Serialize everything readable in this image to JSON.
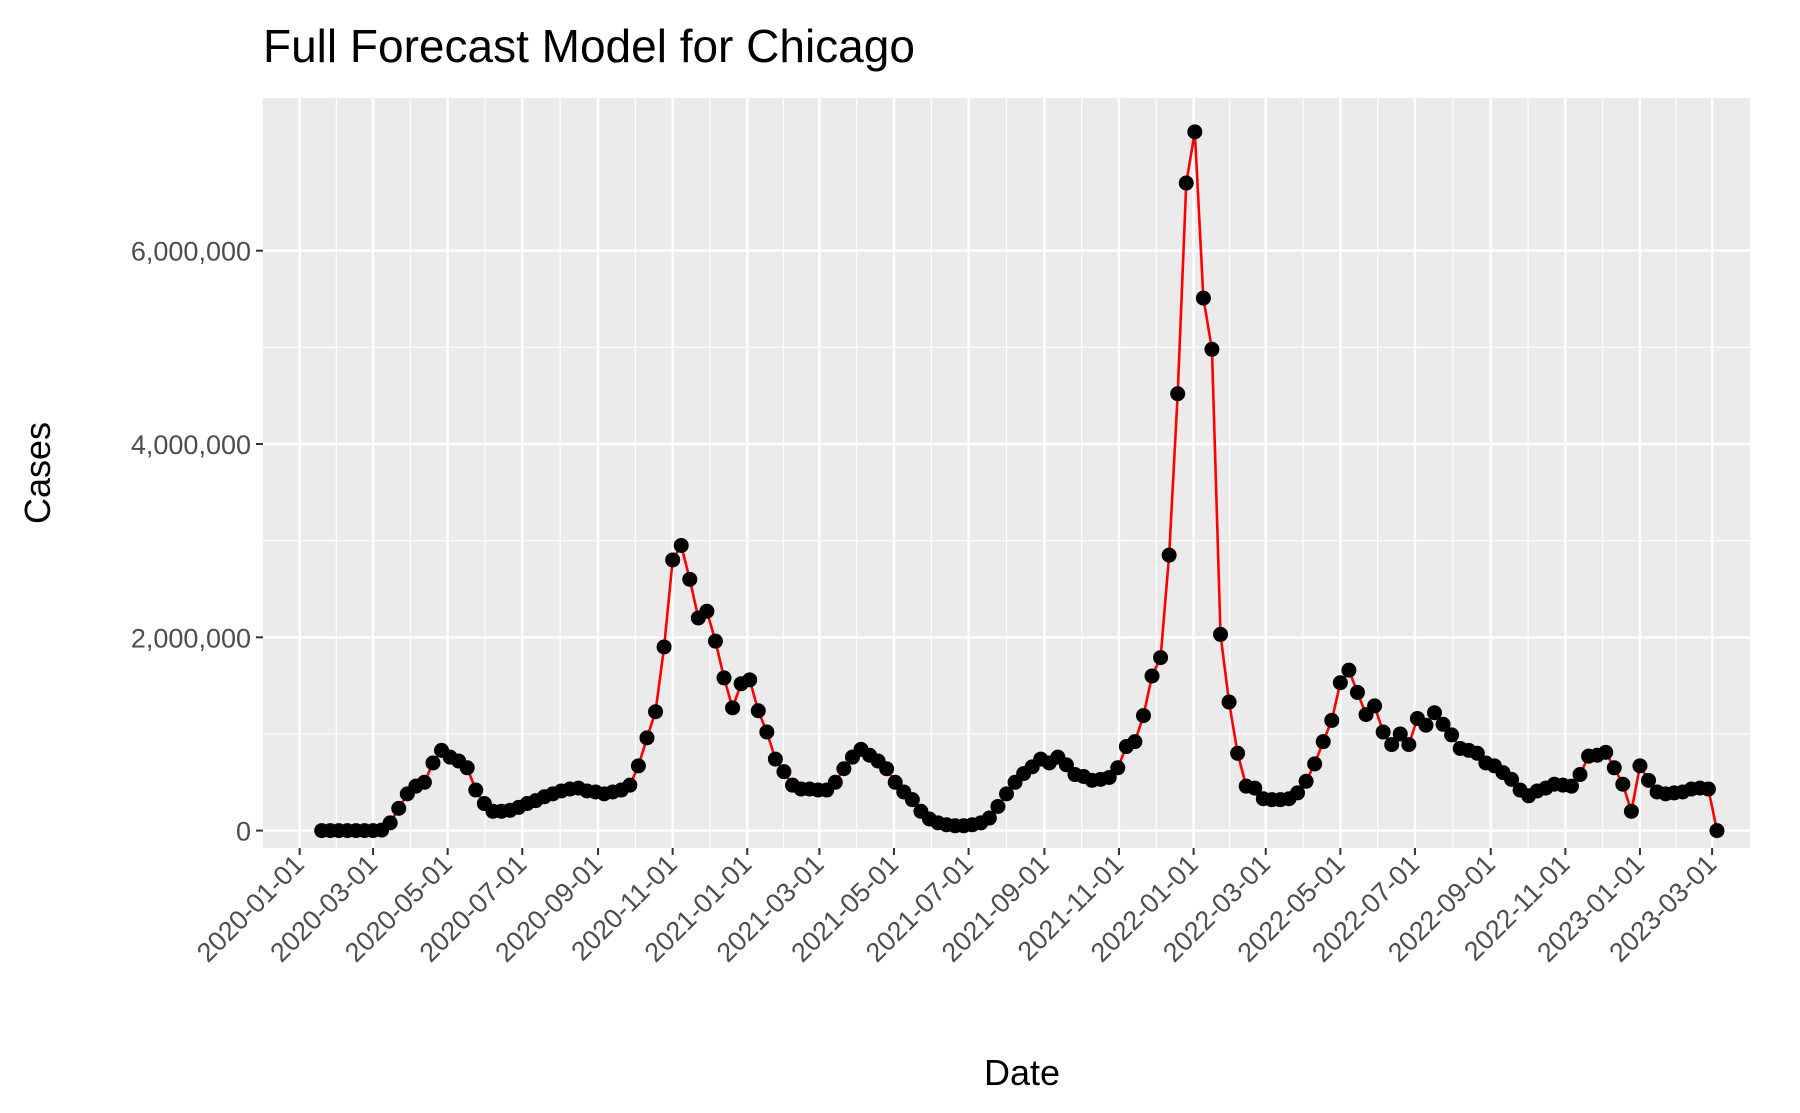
{
  "chart_data": {
    "type": "line_points",
    "title": "Full Forecast Model for Chicago",
    "x_label": "Date",
    "y_label": "Cases",
    "x": [
      "2020-01-19",
      "2020-01-26",
      "2020-02-02",
      "2020-02-09",
      "2020-02-16",
      "2020-02-23",
      "2020-03-01",
      "2020-03-08",
      "2020-03-15",
      "2020-03-22",
      "2020-03-29",
      "2020-04-05",
      "2020-04-12",
      "2020-04-19",
      "2020-04-26",
      "2020-05-03",
      "2020-05-10",
      "2020-05-17",
      "2020-05-24",
      "2020-05-31",
      "2020-06-07",
      "2020-06-14",
      "2020-06-21",
      "2020-06-28",
      "2020-07-05",
      "2020-07-12",
      "2020-07-19",
      "2020-07-26",
      "2020-08-02",
      "2020-08-09",
      "2020-08-16",
      "2020-08-23",
      "2020-08-30",
      "2020-09-06",
      "2020-09-13",
      "2020-09-20",
      "2020-09-27",
      "2020-10-04",
      "2020-10-11",
      "2020-10-18",
      "2020-10-25",
      "2020-11-01",
      "2020-11-08",
      "2020-11-15",
      "2020-11-22",
      "2020-11-29",
      "2020-12-06",
      "2020-12-13",
      "2020-12-20",
      "2020-12-27",
      "2021-01-03",
      "2021-01-10",
      "2021-01-17",
      "2021-01-24",
      "2021-01-31",
      "2021-02-07",
      "2021-02-14",
      "2021-02-21",
      "2021-02-28",
      "2021-03-07",
      "2021-03-14",
      "2021-03-21",
      "2021-03-28",
      "2021-04-04",
      "2021-04-11",
      "2021-04-18",
      "2021-04-25",
      "2021-05-02",
      "2021-05-09",
      "2021-05-16",
      "2021-05-23",
      "2021-05-30",
      "2021-06-06",
      "2021-06-13",
      "2021-06-20",
      "2021-06-27",
      "2021-07-04",
      "2021-07-11",
      "2021-07-18",
      "2021-07-25",
      "2021-08-01",
      "2021-08-08",
      "2021-08-15",
      "2021-08-22",
      "2021-08-29",
      "2021-09-05",
      "2021-09-12",
      "2021-09-19",
      "2021-09-26",
      "2021-10-03",
      "2021-10-10",
      "2021-10-17",
      "2021-10-24",
      "2021-10-31",
      "2021-11-07",
      "2021-11-14",
      "2021-11-21",
      "2021-11-28",
      "2021-12-05",
      "2021-12-12",
      "2021-12-19",
      "2021-12-26",
      "2022-01-02",
      "2022-01-09",
      "2022-01-16",
      "2022-01-23",
      "2022-01-30",
      "2022-02-06",
      "2022-02-13",
      "2022-02-20",
      "2022-02-27",
      "2022-03-06",
      "2022-03-13",
      "2022-03-20",
      "2022-03-27",
      "2022-04-03",
      "2022-04-10",
      "2022-04-17",
      "2022-04-24",
      "2022-05-01",
      "2022-05-08",
      "2022-05-15",
      "2022-05-22",
      "2022-05-29",
      "2022-06-05",
      "2022-06-12",
      "2022-06-19",
      "2022-06-26",
      "2022-07-03",
      "2022-07-10",
      "2022-07-17",
      "2022-07-24",
      "2022-07-31",
      "2022-08-07",
      "2022-08-14",
      "2022-08-21",
      "2022-08-28",
      "2022-09-04",
      "2022-09-11",
      "2022-09-18",
      "2022-09-25",
      "2022-10-02",
      "2022-10-09",
      "2022-10-16",
      "2022-10-23",
      "2022-10-30",
      "2022-11-06",
      "2022-11-13",
      "2022-11-20",
      "2022-11-27",
      "2022-12-04",
      "2022-12-11",
      "2022-12-18",
      "2022-12-25",
      "2023-01-01",
      "2023-01-08",
      "2023-01-15",
      "2023-01-22",
      "2023-01-29",
      "2023-02-05",
      "2023-02-12",
      "2023-02-19",
      "2023-02-26",
      "2023-03-05"
    ],
    "series": [
      {
        "color": "#ff0000",
        "marker_color": "#000000",
        "values": [
          0,
          0,
          0,
          0,
          0,
          0,
          0,
          5000,
          80000,
          230000,
          380000,
          460000,
          500000,
          700000,
          830000,
          760000,
          720000,
          650000,
          420000,
          280000,
          200000,
          200000,
          210000,
          240000,
          280000,
          310000,
          350000,
          380000,
          410000,
          430000,
          440000,
          410000,
          400000,
          380000,
          400000,
          420000,
          470000,
          670000,
          960000,
          1230000,
          1900000,
          2800000,
          2950000,
          2600000,
          2200000,
          2270000,
          1960000,
          1580000,
          1270000,
          1520000,
          1560000,
          1240000,
          1020000,
          740000,
          610000,
          470000,
          430000,
          430000,
          420000,
          420000,
          500000,
          640000,
          760000,
          840000,
          780000,
          720000,
          640000,
          500000,
          400000,
          320000,
          200000,
          120000,
          80000,
          60000,
          50000,
          50000,
          60000,
          80000,
          130000,
          250000,
          380000,
          500000,
          590000,
          660000,
          740000,
          700000,
          760000,
          680000,
          580000,
          560000,
          520000,
          530000,
          550000,
          650000,
          870000,
          920000,
          1190000,
          1600000,
          1790000,
          2850000,
          4520000,
          6700000,
          7230000,
          5510000,
          4980000,
          2030000,
          1330000,
          800000,
          460000,
          440000,
          330000,
          320000,
          320000,
          330000,
          390000,
          510000,
          690000,
          920000,
          1140000,
          1530000,
          1660000,
          1430000,
          1200000,
          1290000,
          1020000,
          890000,
          1000000,
          890000,
          1160000,
          1090000,
          1220000,
          1100000,
          990000,
          850000,
          830000,
          800000,
          700000,
          670000,
          600000,
          530000,
          420000,
          360000,
          410000,
          440000,
          480000,
          470000,
          460000,
          580000,
          770000,
          780000,
          810000,
          650000,
          480000,
          200000,
          670000,
          520000,
          400000,
          380000,
          390000,
          400000,
          430000,
          440000,
          430000,
          0
        ]
      }
    ],
    "xlim": [
      "2019-12-02",
      "2023-04-01"
    ],
    "xticks": [
      "2020-01-01",
      "2020-03-01",
      "2020-05-01",
      "2020-07-01",
      "2020-09-01",
      "2020-11-01",
      "2021-01-01",
      "2021-03-01",
      "2021-05-01",
      "2021-07-01",
      "2021-09-01",
      "2021-11-01",
      "2022-01-01",
      "2022-03-01",
      "2022-05-01",
      "2022-07-01",
      "2022-09-01",
      "2022-11-01",
      "2023-01-01",
      "2023-03-01"
    ],
    "ylim": [
      -180000,
      7580000
    ],
    "yticks": [
      0,
      {
        "value": 2000000,
        "label": "2,000,000"
      },
      {
        "value": 4000000,
        "label": "4,000,000"
      },
      {
        "value": 6000000,
        "label": "6,000,000"
      }
    ],
    "grid": true
  }
}
